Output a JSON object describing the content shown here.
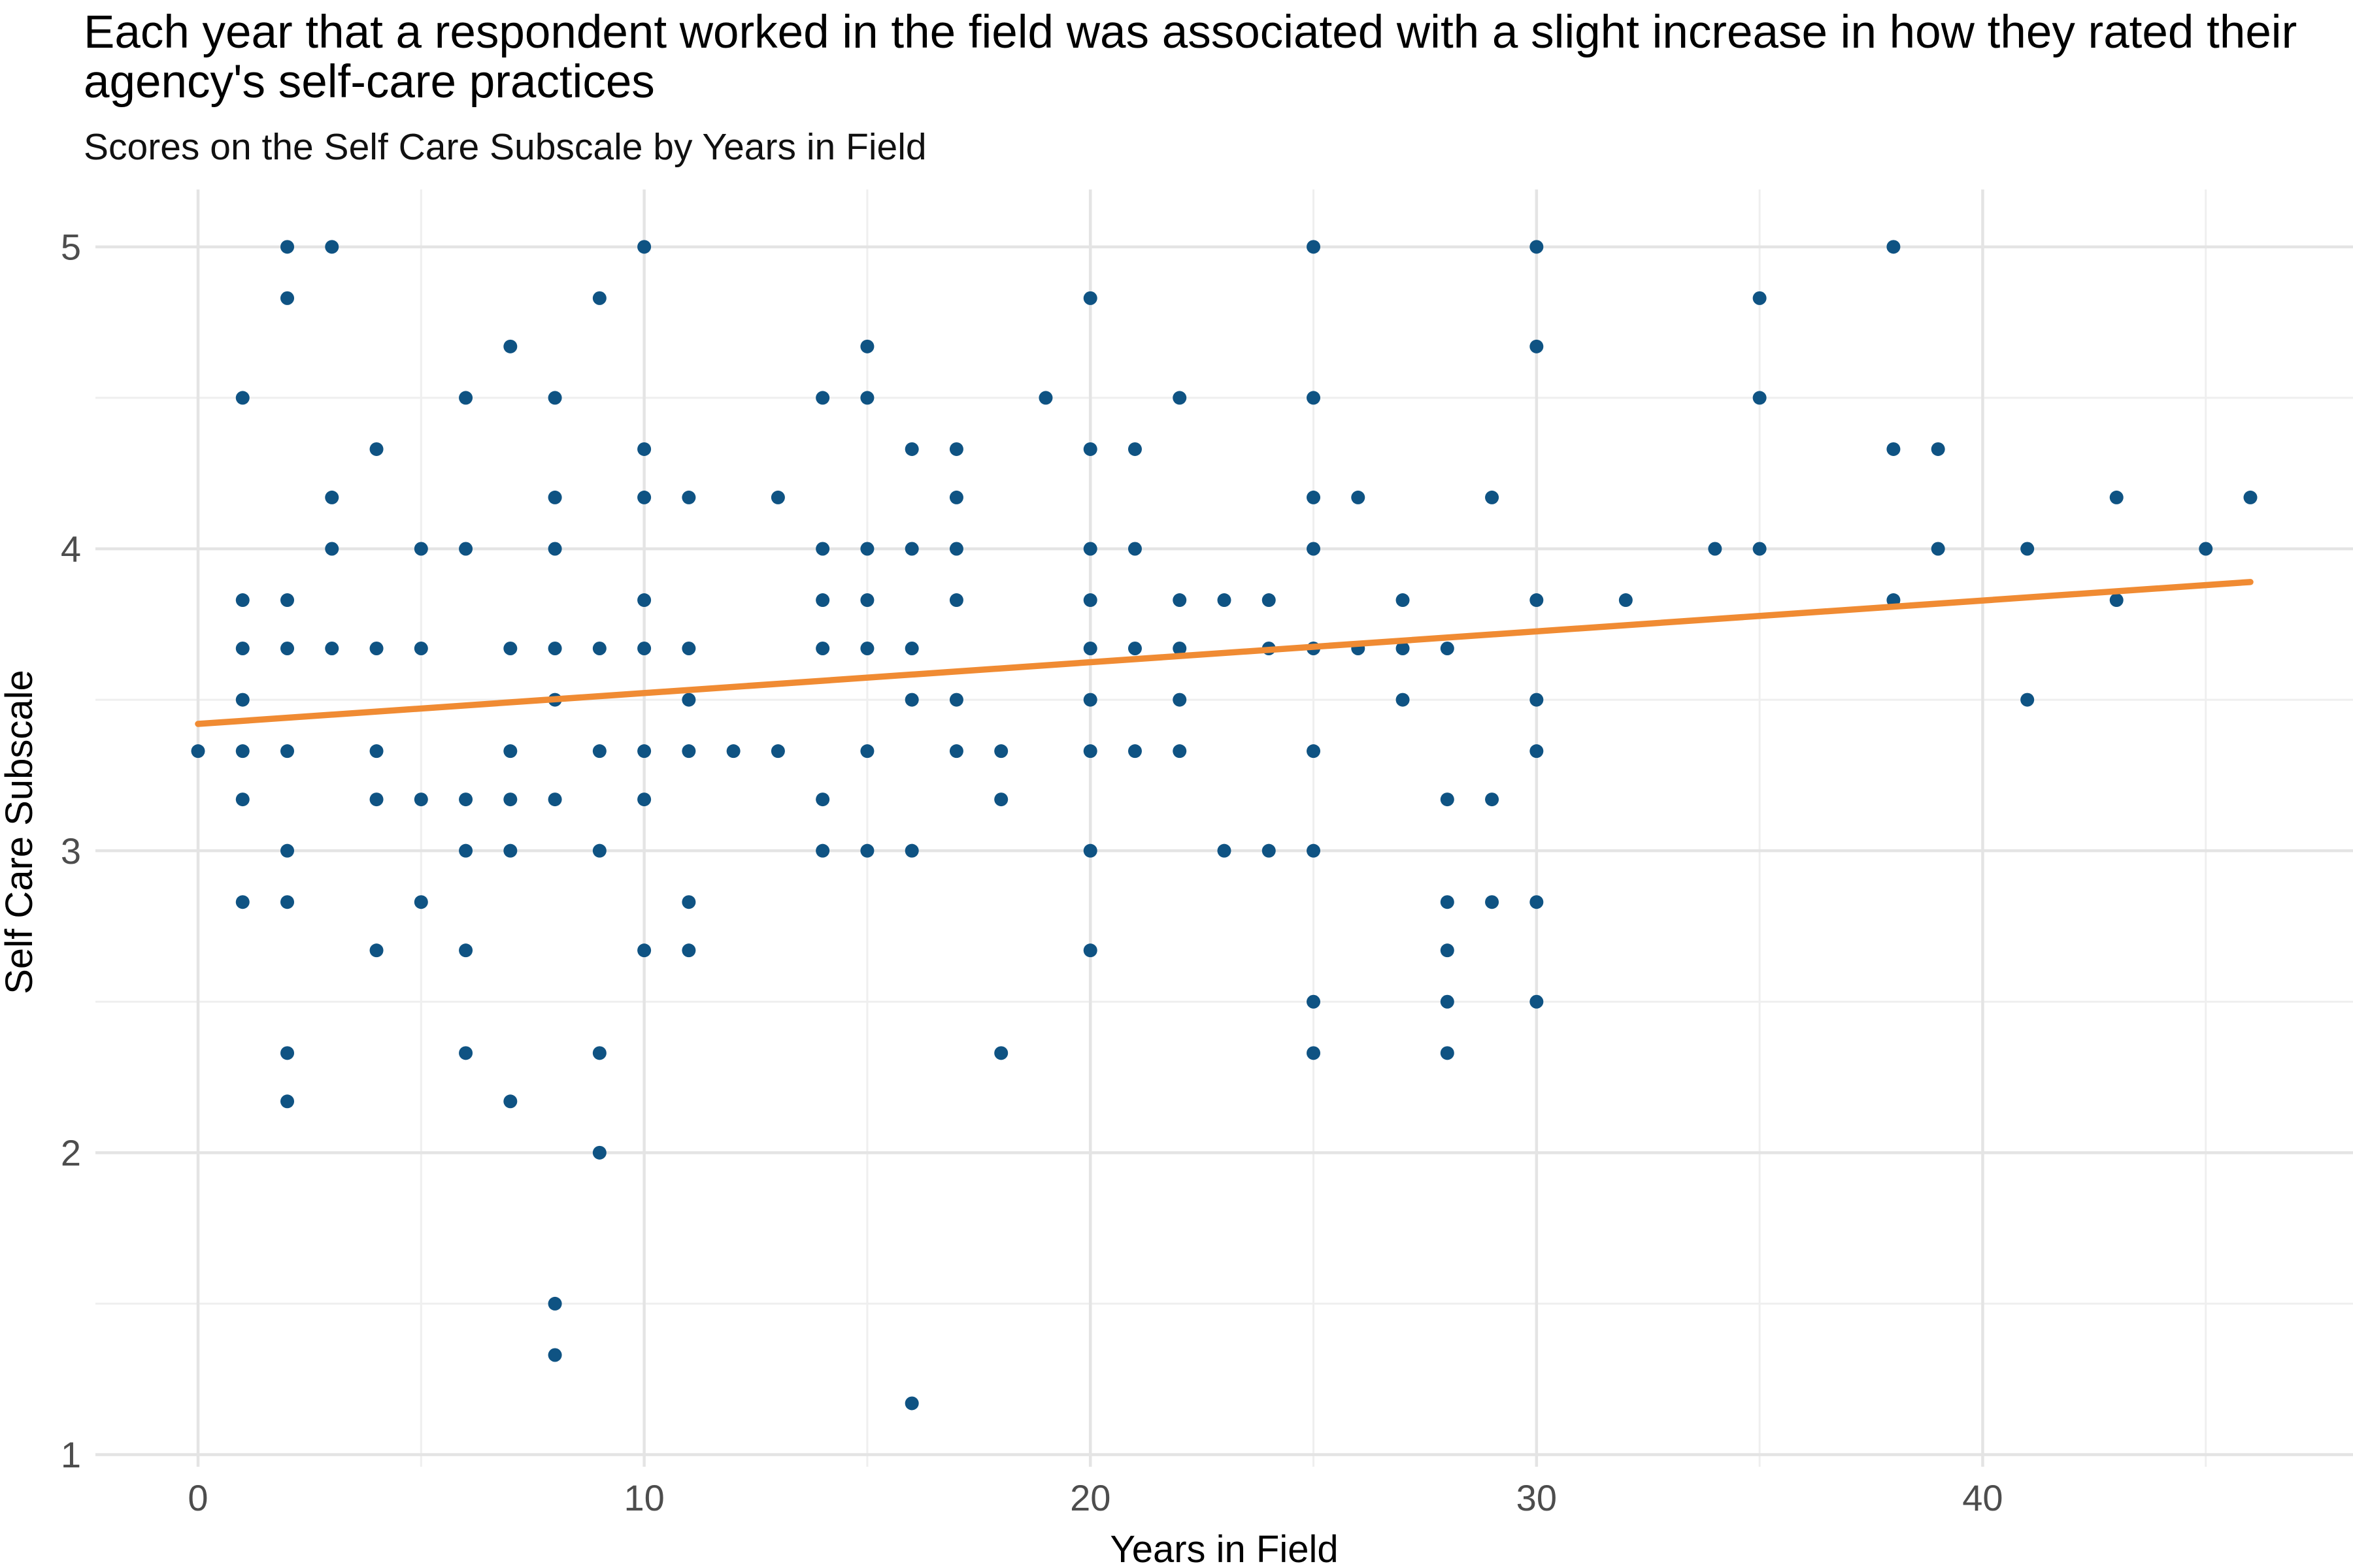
{
  "chart_data": {
    "type": "scatter",
    "title": "Each year that a respondent worked in the field was associated with a slight increase in how they rated their agency's self-care practices",
    "subtitle": "Scores on the Self Care Subscale by Years in Field",
    "xlabel": "Years in Field",
    "ylabel": "Self Care Subscale",
    "x_ticks": [
      0,
      10,
      20,
      30,
      40
    ],
    "x_minor_ticks": [
      5,
      15,
      25,
      35,
      45
    ],
    "y_ticks": [
      1,
      2,
      3,
      4,
      5
    ],
    "y_minor_ticks": [
      1.5,
      2.5,
      3.5,
      4.5
    ],
    "xlim": [
      -2.3,
      48.3
    ],
    "ylim": [
      0.96,
      5.19
    ],
    "grid": "major and minor gridlines, white background, no axis lines, no legend",
    "style": {
      "point_color": "#0f5383",
      "trend_color": "#f08b33",
      "grid_major_color": "#e4e4e4",
      "grid_minor_color": "#efefef",
      "tick_label_color": "#4d4d4d",
      "title_color": "#000000"
    },
    "trend_line": {
      "x1": 0,
      "y1": 3.42,
      "x2": 46,
      "y2": 3.89
    },
    "points": [
      [
        0,
        3.33
      ],
      [
        1,
        4.5
      ],
      [
        1,
        3.83
      ],
      [
        1,
        3.67
      ],
      [
        1,
        3.5
      ],
      [
        1,
        3.33
      ],
      [
        1,
        3.17
      ],
      [
        1,
        2.83
      ],
      [
        2,
        5
      ],
      [
        2,
        4.83
      ],
      [
        2,
        3.83
      ],
      [
        2,
        3.67
      ],
      [
        2,
        3.33
      ],
      [
        2,
        3
      ],
      [
        2,
        2.83
      ],
      [
        2,
        2.33
      ],
      [
        2,
        2.17
      ],
      [
        3,
        5
      ],
      [
        3,
        4.17
      ],
      [
        3,
        4
      ],
      [
        3,
        3.67
      ],
      [
        4,
        4.33
      ],
      [
        4,
        3.67
      ],
      [
        4,
        3.33
      ],
      [
        4,
        3.17
      ],
      [
        4,
        2.67
      ],
      [
        5,
        4
      ],
      [
        5,
        3.67
      ],
      [
        5,
        3.17
      ],
      [
        5,
        2.83
      ],
      [
        6,
        4.5
      ],
      [
        6,
        4
      ],
      [
        6,
        3.17
      ],
      [
        6,
        3
      ],
      [
        6,
        2.67
      ],
      [
        6,
        2.33
      ],
      [
        7,
        4.67
      ],
      [
        7,
        3.67
      ],
      [
        7,
        3.33
      ],
      [
        7,
        3.17
      ],
      [
        7,
        3
      ],
      [
        7,
        2.17
      ],
      [
        8,
        4.5
      ],
      [
        8,
        4.17
      ],
      [
        8,
        4
      ],
      [
        8,
        3.67
      ],
      [
        8,
        3.5
      ],
      [
        8,
        3.17
      ],
      [
        8,
        1.5
      ],
      [
        8,
        1.33
      ],
      [
        9,
        4.83
      ],
      [
        9,
        3.67
      ],
      [
        9,
        3.33
      ],
      [
        9,
        3
      ],
      [
        9,
        2.33
      ],
      [
        9,
        2
      ],
      [
        10,
        5
      ],
      [
        10,
        4.33
      ],
      [
        10,
        4.17
      ],
      [
        10,
        3.83
      ],
      [
        10,
        3.67
      ],
      [
        10,
        3.33
      ],
      [
        10,
        3.17
      ],
      [
        10,
        2.67
      ],
      [
        11,
        4.17
      ],
      [
        11,
        3.67
      ],
      [
        11,
        3.5
      ],
      [
        11,
        3.33
      ],
      [
        11,
        2.83
      ],
      [
        11,
        2.67
      ],
      [
        12,
        3.33
      ],
      [
        13,
        4.17
      ],
      [
        13,
        3.33
      ],
      [
        14,
        4.5
      ],
      [
        14,
        4
      ],
      [
        14,
        3.83
      ],
      [
        14,
        3.67
      ],
      [
        14,
        3.17
      ],
      [
        14,
        3
      ],
      [
        15,
        4.67
      ],
      [
        15,
        4.5
      ],
      [
        15,
        4
      ],
      [
        15,
        3.83
      ],
      [
        15,
        3.67
      ],
      [
        15,
        3.33
      ],
      [
        15,
        3
      ],
      [
        16,
        4.33
      ],
      [
        16,
        4
      ],
      [
        16,
        3.67
      ],
      [
        16,
        3.5
      ],
      [
        16,
        3
      ],
      [
        16,
        1.17
      ],
      [
        17,
        4.33
      ],
      [
        17,
        4.17
      ],
      [
        17,
        4
      ],
      [
        17,
        3.83
      ],
      [
        17,
        3.5
      ],
      [
        17,
        3.33
      ],
      [
        18,
        3.33
      ],
      [
        18,
        3.17
      ],
      [
        18,
        2.33
      ],
      [
        19,
        4.5
      ],
      [
        20,
        4.83
      ],
      [
        20,
        4.33
      ],
      [
        20,
        4
      ],
      [
        20,
        3.83
      ],
      [
        20,
        3.67
      ],
      [
        20,
        3.5
      ],
      [
        20,
        3.33
      ],
      [
        20,
        3
      ],
      [
        20,
        2.67
      ],
      [
        21,
        4.33
      ],
      [
        21,
        4
      ],
      [
        21,
        3.67
      ],
      [
        21,
        3.33
      ],
      [
        22,
        4.5
      ],
      [
        22,
        3.83
      ],
      [
        22,
        3.67
      ],
      [
        22,
        3.5
      ],
      [
        22,
        3.33
      ],
      [
        23,
        3.83
      ],
      [
        23,
        3
      ],
      [
        24,
        3.83
      ],
      [
        24,
        3.67
      ],
      [
        24,
        3
      ],
      [
        25,
        5
      ],
      [
        25,
        4.5
      ],
      [
        25,
        4.17
      ],
      [
        25,
        4
      ],
      [
        25,
        3.67
      ],
      [
        25,
        3.33
      ],
      [
        25,
        3
      ],
      [
        25,
        2.5
      ],
      [
        25,
        2.33
      ],
      [
        26,
        4.17
      ],
      [
        26,
        3.67
      ],
      [
        27,
        3.83
      ],
      [
        27,
        3.67
      ],
      [
        27,
        3.5
      ],
      [
        28,
        3.67
      ],
      [
        28,
        3.17
      ],
      [
        28,
        2.83
      ],
      [
        28,
        2.67
      ],
      [
        28,
        2.5
      ],
      [
        28,
        2.33
      ],
      [
        29,
        4.17
      ],
      [
        29,
        3.17
      ],
      [
        29,
        2.83
      ],
      [
        30,
        5
      ],
      [
        30,
        4.67
      ],
      [
        30,
        3.83
      ],
      [
        30,
        3.5
      ],
      [
        30,
        3.33
      ],
      [
        30,
        2.83
      ],
      [
        30,
        2.5
      ],
      [
        32,
        3.83
      ],
      [
        34,
        4
      ],
      [
        35,
        4.83
      ],
      [
        35,
        4.5
      ],
      [
        35,
        4
      ],
      [
        38,
        5
      ],
      [
        38,
        4.33
      ],
      [
        38,
        3.83
      ],
      [
        39,
        4.33
      ],
      [
        39,
        4
      ],
      [
        41,
        4
      ],
      [
        41,
        3.5
      ],
      [
        43,
        4.17
      ],
      [
        43,
        3.83
      ],
      [
        45,
        4
      ],
      [
        46,
        4.17
      ]
    ]
  }
}
